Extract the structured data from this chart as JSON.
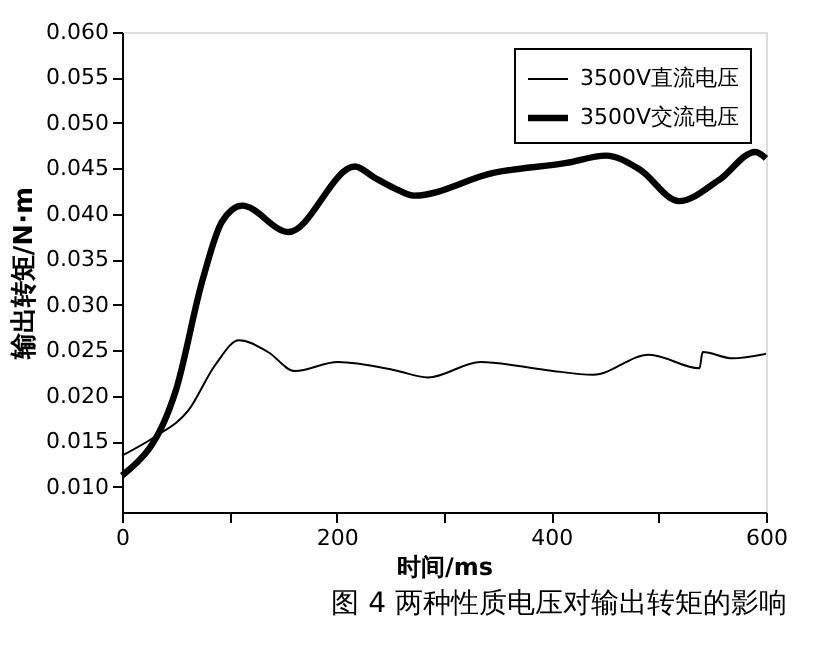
{
  "chart_data": {
    "type": "line",
    "xlabel": "时间/ms",
    "ylabel": "输出转矩/N·m",
    "annotations": [
      "图 4 两种性质电压对输出转矩的影响"
    ],
    "xlim": [
      0,
      600
    ],
    "ylim": [
      0.0072,
      0.06
    ],
    "xticks": [
      0,
      {
        "value": 100,
        "label": null
      },
      200,
      {
        "value": 300,
        "label": null
      },
      400,
      {
        "value": 500,
        "label": null
      },
      600
    ],
    "yticks": [
      {
        "value": 0.01,
        "label": "0.010"
      },
      {
        "value": 0.015,
        "label": "0.015"
      },
      {
        "value": 0.02,
        "label": "0.020"
      },
      {
        "value": 0.025,
        "label": "0.025"
      },
      {
        "value": 0.03,
        "label": "0.030"
      },
      {
        "value": 0.035,
        "label": "0.035"
      },
      {
        "value": 0.04,
        "label": "0.040"
      },
      {
        "value": 0.045,
        "label": "0.045"
      },
      {
        "value": 0.05,
        "label": "0.050"
      },
      {
        "value": 0.055,
        "label": "0.055"
      },
      {
        "value": 0.06,
        "label": "0.060"
      }
    ],
    "legend": "top right",
    "grid": false,
    "marker": "none",
    "line_style": "solid",
    "series": [
      {
        "name": "3500V直流电压",
        "color": "#000000",
        "x": [
          0,
          31,
          62,
          87,
          109,
          136,
          161,
          201,
          254,
          285,
          334,
          396,
          439,
          491,
          538,
          541,
          569,
          600
        ],
        "values": [
          0.0134,
          0.0155,
          0.0184,
          0.0234,
          0.0261,
          0.0248,
          0.0227,
          0.0237,
          0.0228,
          0.022,
          0.0237,
          0.0228,
          0.0223,
          0.0245,
          0.023,
          0.0248,
          0.0241,
          0.0246
        ]
      },
      {
        "name": "3500V交流电压",
        "color": "#000000",
        "x": [
          0,
          50,
          75,
          93,
          112,
          155,
          217,
          235,
          254,
          272,
          346,
          414,
          451,
          482,
          519,
          556,
          590,
          600
        ],
        "values": [
          0.0112,
          0.0205,
          0.0327,
          0.0391,
          0.0409,
          0.038,
          0.0452,
          0.044,
          0.0428,
          0.042,
          0.0445,
          0.0456,
          0.0464,
          0.0449,
          0.0414,
          0.0437,
          0.0468,
          0.0461
        ]
      }
    ]
  }
}
